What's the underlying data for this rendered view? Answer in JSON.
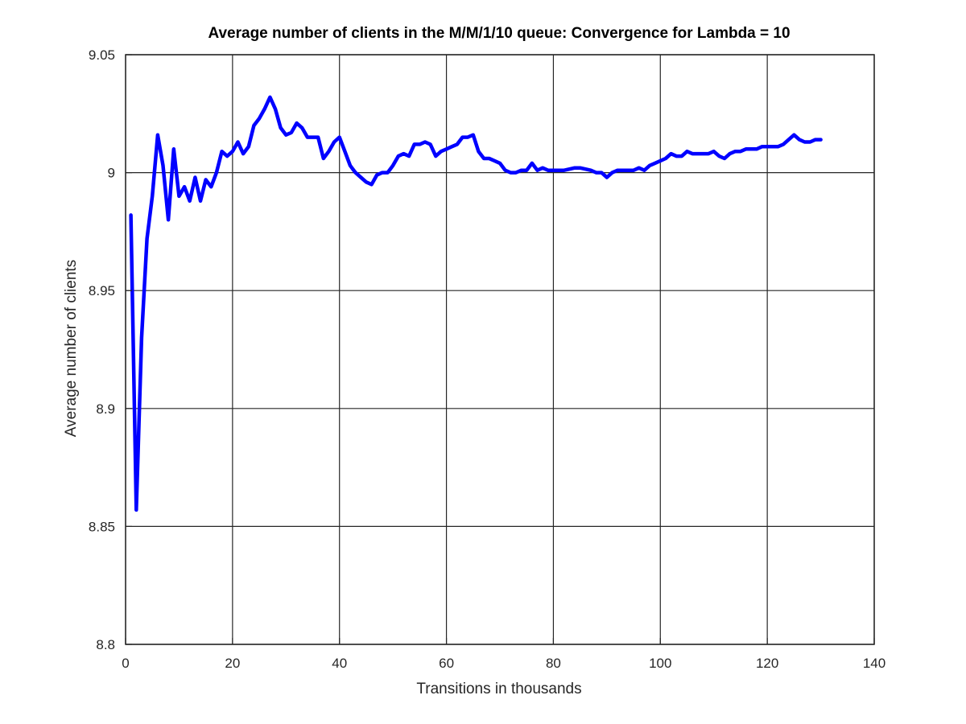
{
  "colors": {
    "series": "#0000ff",
    "grid": "#262626",
    "axis": "#262626",
    "background": "#ffffff"
  },
  "chart_data": {
    "type": "line",
    "title": "Average number of clients in the M/M/1/10 queue: Convergence for Lambda = 10",
    "xlabel": "Transitions in thousands",
    "ylabel": "Average number of clients",
    "xlim": [
      0,
      140
    ],
    "ylim": [
      8.8,
      9.05
    ],
    "xticks": [
      0,
      20,
      40,
      60,
      80,
      100,
      120,
      140
    ],
    "xtick_labels": [
      "0",
      "20",
      "40",
      "60",
      "80",
      "100",
      "120",
      "140"
    ],
    "yticks": [
      8.8,
      8.85,
      8.9,
      8.95,
      9.0,
      9.05
    ],
    "ytick_labels": [
      "8.8",
      "8.85",
      "8.9",
      "8.95",
      "9",
      "9.05"
    ],
    "grid": true,
    "series": [
      {
        "color": "#0000ff",
        "x": [
          1,
          2,
          3,
          4,
          5,
          6,
          7,
          8,
          9,
          10,
          11,
          12,
          13,
          14,
          15,
          16,
          17,
          18,
          19,
          20,
          21,
          22,
          23,
          24,
          25,
          26,
          27,
          28,
          29,
          30,
          31,
          32,
          33,
          34,
          35,
          36,
          37,
          38,
          39,
          40,
          41,
          42,
          43,
          44,
          45,
          46,
          47,
          48,
          49,
          50,
          51,
          52,
          53,
          54,
          55,
          56,
          57,
          58,
          59,
          60,
          61,
          62,
          63,
          64,
          65,
          66,
          67,
          68,
          69,
          70,
          71,
          72,
          73,
          74,
          75,
          76,
          77,
          78,
          79,
          80,
          81,
          82,
          83,
          84,
          85,
          86,
          87,
          88,
          89,
          90,
          91,
          92,
          93,
          94,
          95,
          96,
          97,
          98,
          99,
          100,
          101,
          102,
          103,
          104,
          105,
          106,
          107,
          108,
          109,
          110,
          111,
          112,
          113,
          114,
          115,
          116,
          117,
          118,
          119,
          120,
          121,
          122,
          123,
          124,
          125,
          126,
          127,
          128,
          129,
          130
        ],
        "y": [
          8.982,
          8.857,
          8.93,
          8.972,
          8.99,
          9.016,
          9.003,
          8.98,
          9.01,
          8.99,
          8.994,
          8.988,
          8.998,
          8.988,
          8.997,
          8.994,
          9.0,
          9.009,
          9.007,
          9.009,
          9.013,
          9.008,
          9.011,
          9.02,
          9.023,
          9.027,
          9.032,
          9.027,
          9.019,
          9.016,
          9.017,
          9.021,
          9.019,
          9.015,
          9.015,
          9.015,
          9.006,
          9.009,
          9.013,
          9.015,
          9.009,
          9.003,
          9.0,
          8.998,
          8.996,
          8.995,
          8.999,
          9.0,
          9.0,
          9.003,
          9.007,
          9.008,
          9.007,
          9.012,
          9.012,
          9.013,
          9.012,
          9.007,
          9.009,
          9.01,
          9.011,
          9.012,
          9.015,
          9.015,
          9.016,
          9.009,
          9.006,
          9.006,
          9.005,
          9.004,
          9.001,
          9.0,
          9.0,
          9.001,
          9.001,
          9.004,
          9.001,
          9.002,
          9.001,
          9.001,
          9.001,
          9.001,
          9.0015,
          9.002,
          9.002,
          9.0015,
          9.001,
          9.0,
          9.0,
          8.998,
          9.0,
          9.001,
          9.001,
          9.001,
          9.001,
          9.002,
          9.001,
          9.003,
          9.004,
          9.005,
          9.006,
          9.008,
          9.007,
          9.007,
          9.009,
          9.008,
          9.008,
          9.008,
          9.008,
          9.009,
          9.007,
          9.006,
          9.008,
          9.009,
          9.009,
          9.01,
          9.01,
          9.01,
          9.011,
          9.011,
          9.011,
          9.011,
          9.012,
          9.014,
          9.016,
          9.014,
          9.013,
          9.013,
          9.014,
          9.014
        ]
      }
    ]
  }
}
